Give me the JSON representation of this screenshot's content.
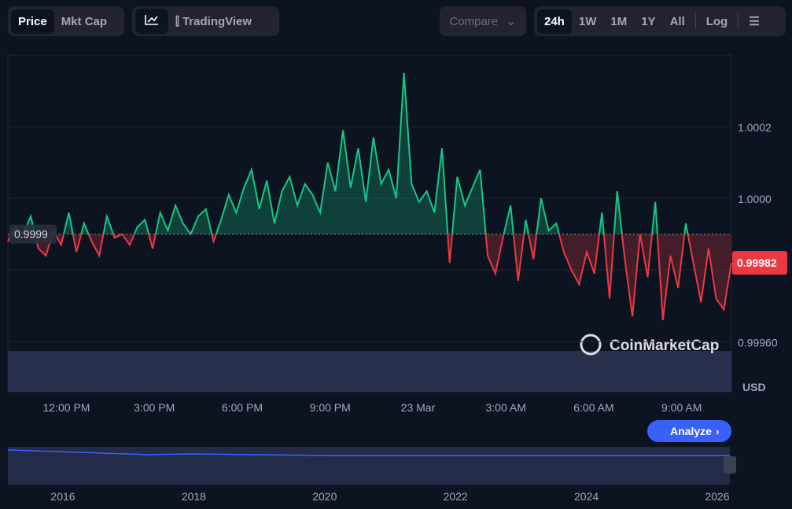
{
  "toolbar": {
    "view": [
      "Price",
      "Mkt Cap"
    ],
    "tradingview": "TradingView",
    "compare": "Compare",
    "ranges": [
      "24h",
      "1W",
      "1M",
      "1Y",
      "All"
    ],
    "log": "Log"
  },
  "chart_data": {
    "type": "line",
    "baseline": {
      "value": 0.9999,
      "label": "0.9999"
    },
    "current": {
      "value": 0.99982,
      "label": "0.99982"
    },
    "axis_unit": "USD",
    "watermark": "CoinMarketCap",
    "colors": {
      "up": "#16c784",
      "down": "#ea3943"
    },
    "xlim": [
      10,
      34.7
    ],
    "xticks": [
      {
        "value": 12,
        "label": "12:00 PM"
      },
      {
        "value": 15,
        "label": "3:00 PM"
      },
      {
        "value": 18,
        "label": "6:00 PM"
      },
      {
        "value": 21,
        "label": "9:00 PM"
      },
      {
        "value": 24,
        "label": "23 Mar"
      },
      {
        "value": 27,
        "label": "3:00 AM"
      },
      {
        "value": 30,
        "label": "6:00 AM"
      },
      {
        "value": 33,
        "label": "9:00 AM"
      }
    ],
    "ylim": [
      0.99946,
      1.0004
    ],
    "yticks": [
      {
        "value": 1.0002,
        "label": "1.0002"
      },
      {
        "value": 1,
        "label": "1.0000"
      },
      0.9998,
      {
        "value": 0.9996,
        "label": "0.99960"
      }
    ],
    "series": [
      {
        "name": "Price",
        "values": [
          0.99988,
          0.99992,
          0.9999,
          0.99995,
          0.99986,
          0.99984,
          0.99991,
          0.99987,
          0.99996,
          0.99985,
          0.99993,
          0.99988,
          0.99984,
          0.99995,
          0.99989,
          0.9999,
          0.99987,
          0.99992,
          0.99994,
          0.99986,
          0.99996,
          0.99991,
          0.99998,
          0.99993,
          0.9999,
          0.99995,
          0.99997,
          0.99988,
          0.99994,
          1.00001,
          0.99996,
          1.00003,
          1.00008,
          0.99997,
          1.00005,
          0.99993,
          1.00002,
          1.00006,
          0.99998,
          1.00004,
          1.00001,
          0.99996,
          1.0001,
          1.00002,
          1.00019,
          1.00003,
          1.00014,
          0.99999,
          1.00017,
          1.00004,
          1.00008,
          1.0,
          1.00035,
          1.00004,
          0.99999,
          1.00002,
          0.99996,
          1.00014,
          0.99982,
          1.00006,
          0.99998,
          1.00003,
          1.00008,
          0.99984,
          0.99979,
          0.99989,
          0.99998,
          0.99977,
          0.99994,
          0.99983,
          1.0,
          0.99991,
          0.99993,
          0.99985,
          0.9998,
          0.99976,
          0.99985,
          0.99979,
          0.99996,
          0.99972,
          1.00002,
          0.99983,
          0.99967,
          0.9999,
          0.99978,
          0.99999,
          0.99966,
          0.99984,
          0.99975,
          0.99993,
          0.99982,
          0.99971,
          0.99986,
          0.99972,
          0.99969,
          0.99982
        ]
      }
    ]
  },
  "analyze": "Analyze",
  "navigator": {
    "years": [
      "2016",
      "2018",
      "2020",
      "2022",
      "2024",
      "2026"
    ]
  }
}
